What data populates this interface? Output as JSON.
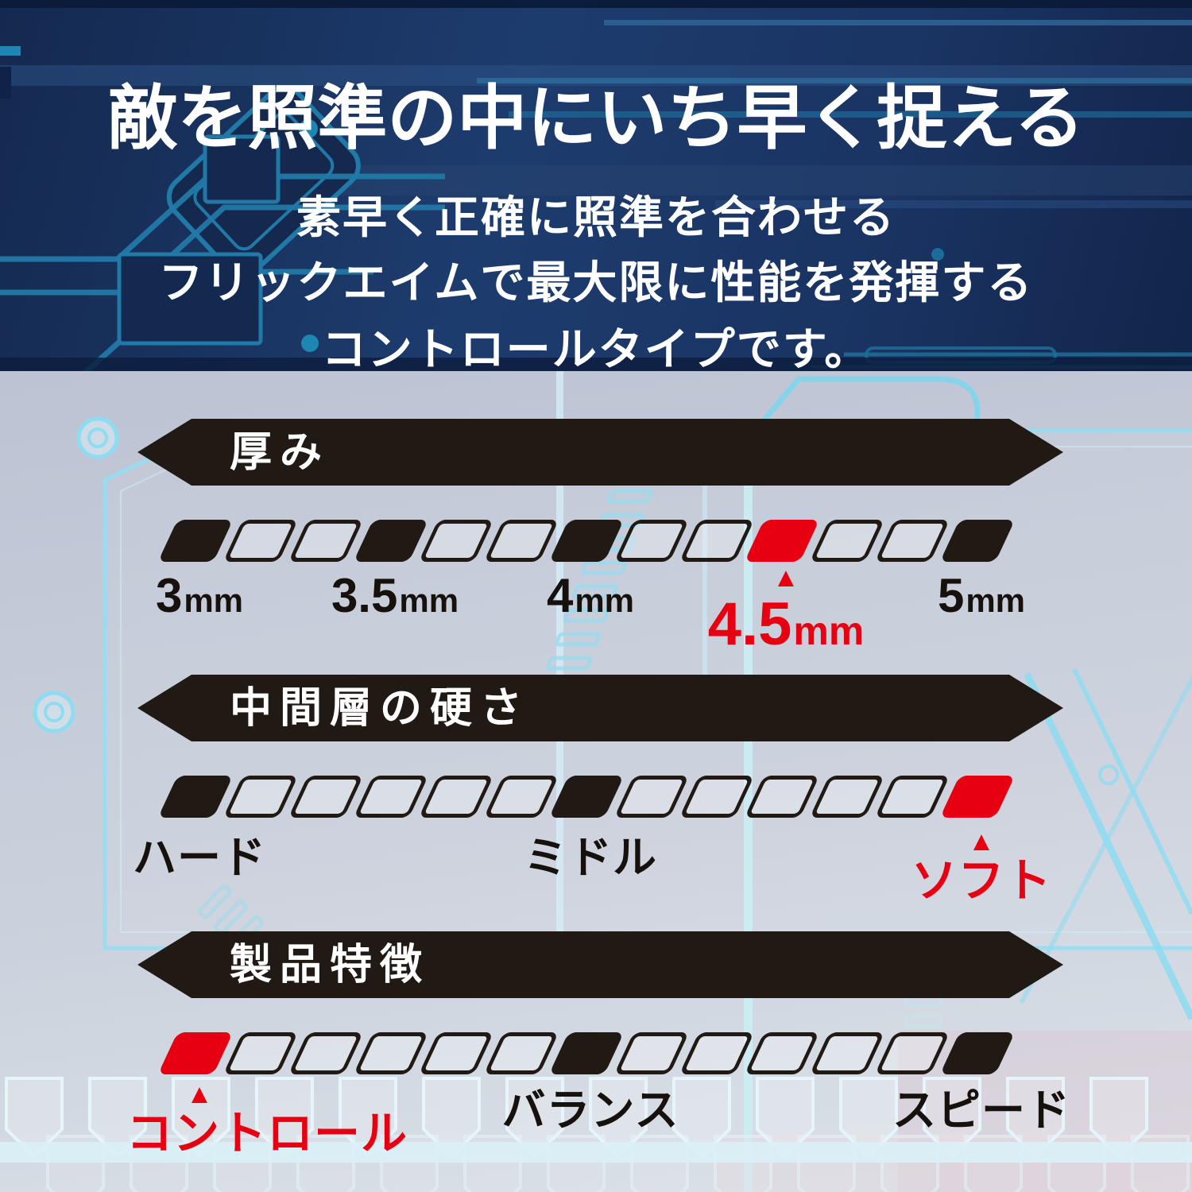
{
  "header": {
    "title": "敵を照準の中にいち早く捉える",
    "subtitle_lines": [
      "素早く正確に照準を合わせる",
      "フリックエイムで最大限に性能を発揮する",
      "コントロールタイプです。"
    ]
  },
  "colors": {
    "accent_red": "#e60012",
    "banner_black": "#211914",
    "label_black": "#17110d",
    "header_navy": "#1d3c6e",
    "body_grey_blue": "#c3c9d6",
    "circuit_cyan_dark": "#2179a7",
    "circuit_cyan_light": "#96dff2"
  },
  "chart_data": [
    {
      "type": "scale",
      "title": "厚み",
      "segments_total": 13,
      "marked_segments": [
        {
          "index": 1,
          "color": "black"
        },
        {
          "index": 4,
          "color": "black"
        },
        {
          "index": 7,
          "color": "black"
        },
        {
          "index": 10,
          "color": "red"
        },
        {
          "index": 13,
          "color": "black"
        }
      ],
      "labels": [
        {
          "text": "3",
          "unit": "mm",
          "segment": 1,
          "highlight": false
        },
        {
          "text": "3.5",
          "unit": "mm",
          "segment": 4,
          "highlight": false
        },
        {
          "text": "4",
          "unit": "mm",
          "segment": 7,
          "highlight": false
        },
        {
          "text": "4.5",
          "unit": "mm",
          "segment": 10,
          "highlight": true,
          "marker": "▲"
        },
        {
          "text": "5",
          "unit": "mm",
          "segment": 13,
          "highlight": false
        }
      ],
      "selected_value": "4.5mm"
    },
    {
      "type": "scale",
      "title": "中間層の硬さ",
      "segments_total": 13,
      "marked_segments": [
        {
          "index": 1,
          "color": "black"
        },
        {
          "index": 7,
          "color": "black"
        },
        {
          "index": 13,
          "color": "red"
        }
      ],
      "labels": [
        {
          "text": "ハード",
          "unit": "",
          "segment": 1,
          "highlight": false
        },
        {
          "text": "ミドル",
          "unit": "",
          "segment": 7,
          "highlight": false
        },
        {
          "text": "ソフト",
          "unit": "",
          "segment": 13,
          "highlight": true,
          "marker": "▲"
        }
      ],
      "selected_value": "ソフト"
    },
    {
      "type": "scale",
      "title": "製品特徴",
      "segments_total": 13,
      "marked_segments": [
        {
          "index": 1,
          "color": "red"
        },
        {
          "index": 7,
          "color": "black"
        },
        {
          "index": 13,
          "color": "black"
        }
      ],
      "labels": [
        {
          "text": "コントロール",
          "unit": "",
          "segment": 1,
          "highlight": true,
          "marker": "▲"
        },
        {
          "text": "バランス",
          "unit": "",
          "segment": 7,
          "highlight": false
        },
        {
          "text": "スピード",
          "unit": "",
          "segment": 13,
          "highlight": false
        }
      ],
      "selected_value": "コントロール"
    }
  ]
}
